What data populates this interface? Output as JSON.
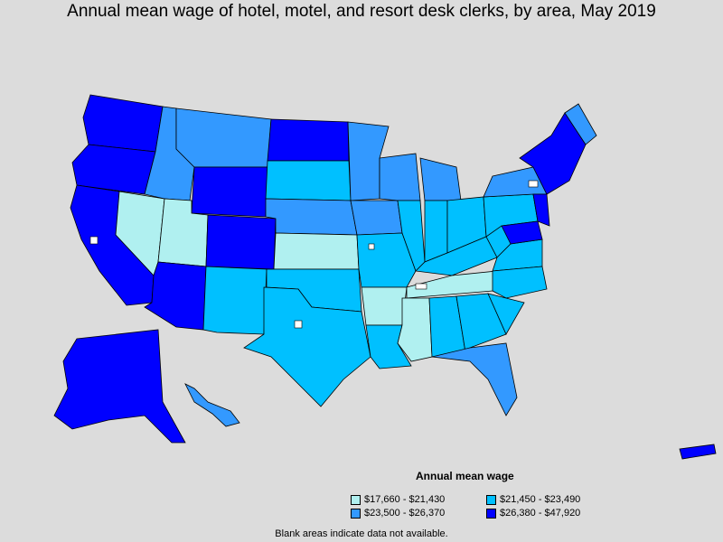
{
  "title": "Annual mean wage of hotel, motel, and resort desk clerks, by area, May 2019",
  "legend": {
    "title": "Annual mean wage",
    "items": [
      {
        "label": "$17,660 - $21,430",
        "color": "#b0f0f0"
      },
      {
        "label": "$21,450 - $23,490",
        "color": "#00c0ff"
      },
      {
        "label": "$23,500 - $26,370",
        "color": "#3399ff"
      },
      {
        "label": "$26,380 - $47,920",
        "color": "#0000ff"
      }
    ]
  },
  "note": "Blank areas indicate data not available.",
  "colors": {
    "background": "#dcdcdc",
    "border": "#000000",
    "blank": "#ffffff"
  }
}
